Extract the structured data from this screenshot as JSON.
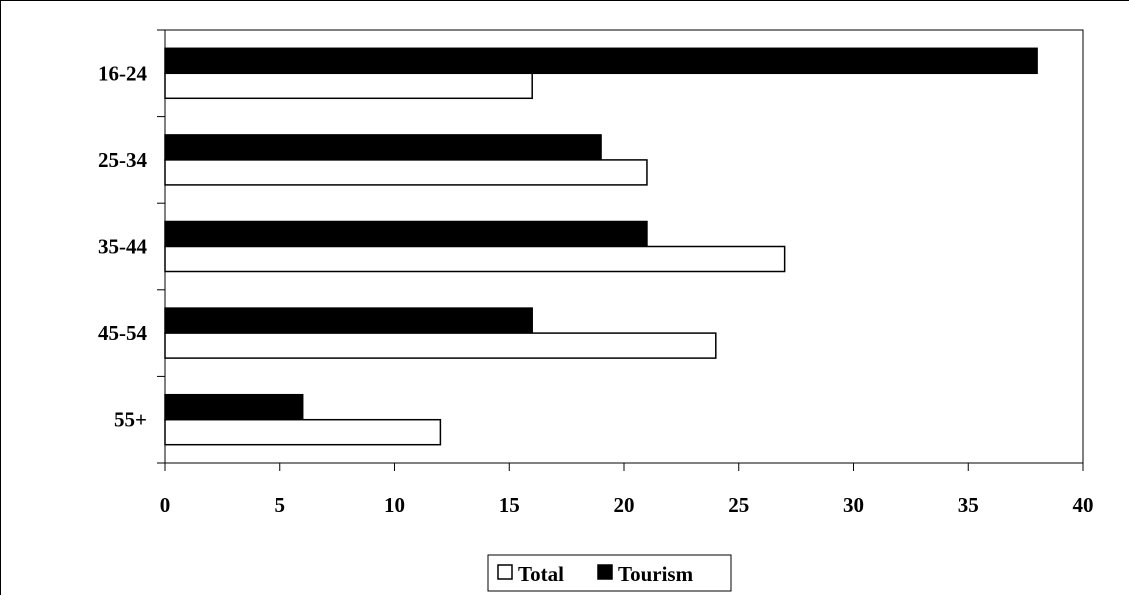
{
  "chart_data": {
    "type": "bar",
    "orientation": "horizontal",
    "categories": [
      "16-24",
      "25-34",
      "35-44",
      "45-54",
      "55+"
    ],
    "series": [
      {
        "name": "Total",
        "values": [
          16,
          21,
          27,
          24,
          12
        ],
        "color": "#ffffff"
      },
      {
        "name": "Tourism",
        "values": [
          38,
          19,
          21,
          16,
          6
        ],
        "color": "#000000"
      }
    ],
    "xlim": [
      0,
      40
    ],
    "x_ticks": [
      "0",
      "5",
      "10",
      "15",
      "20",
      "25",
      "30",
      "35",
      "40"
    ],
    "title": "",
    "xlabel": "",
    "ylabel": "",
    "grid": false,
    "legend": "bottom"
  }
}
